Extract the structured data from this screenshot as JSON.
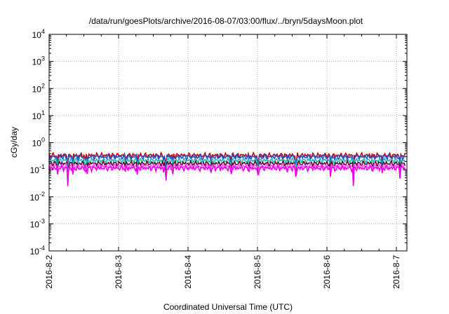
{
  "chart_data": {
    "type": "line",
    "title": "/data/run/goesPlots/archive/2016-08-07/03:00/flux/../bryn/5daysMoon.plot",
    "xlabel": "Coordinated Universal Time (UTC)",
    "ylabel": "cGy/day",
    "yscale": "log",
    "ylim": [
      0.0001,
      10000
    ],
    "xlim": [
      "2016-08-02 00:00",
      "2016-08-07 03:00"
    ],
    "grid": true,
    "legend": "none",
    "y_ticks": [
      {
        "base": "10",
        "exp": "4"
      },
      {
        "base": "10",
        "exp": "3"
      },
      {
        "base": "10",
        "exp": "2"
      },
      {
        "base": "10",
        "exp": "1"
      },
      {
        "base": "10",
        "exp": "0"
      },
      {
        "base": "10",
        "exp": "-1"
      },
      {
        "base": "10",
        "exp": "-2"
      },
      {
        "base": "10",
        "exp": "-3"
      },
      {
        "base": "10",
        "exp": "-4"
      }
    ],
    "x_ticks": [
      "2016-8-2",
      "2016-8-3",
      "2016-8-4",
      "2016-8-5",
      "2016-8-6",
      "2016-8-7"
    ],
    "series": [
      {
        "color": "#cc0000",
        "level": 0.34
      },
      {
        "color": "#2255cc",
        "level": 0.3
      },
      {
        "color": "#22bbaa",
        "level": 0.22
      },
      {
        "color": "#660033",
        "level": 0.17
      },
      {
        "color": "#ff55ff",
        "level": 0.135
      },
      {
        "color": "#ee00ee",
        "level": 0.115
      }
    ],
    "dips": [
      {
        "day": 0.12,
        "depth": 0.45
      },
      {
        "day": 0.27,
        "depth": 0.1
      },
      {
        "day": 0.34,
        "depth": 0.45
      },
      {
        "day": 0.52,
        "depth": 0.5
      },
      {
        "day": 1.27,
        "depth": 0.45
      },
      {
        "day": 1.68,
        "depth": 0.04
      },
      {
        "day": 2.62,
        "depth": 0.5
      },
      {
        "day": 3.0,
        "depth": 0.5
      },
      {
        "day": 3.55,
        "depth": 0.45
      },
      {
        "day": 4.05,
        "depth": 0.45
      },
      {
        "day": 4.38,
        "depth": 0.15
      },
      {
        "day": 5.05,
        "depth": 0.45
      }
    ]
  }
}
